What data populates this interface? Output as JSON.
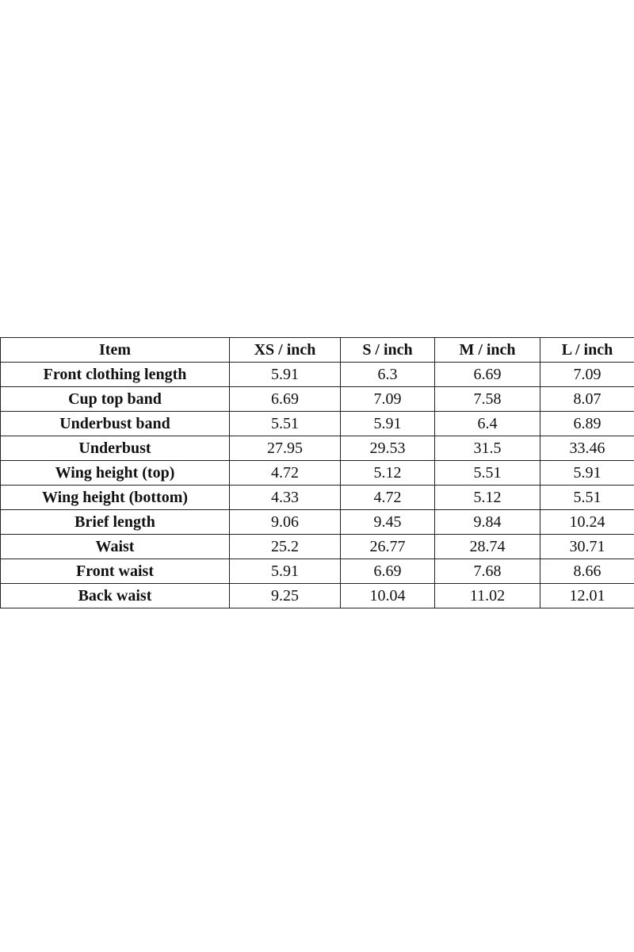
{
  "table": {
    "headers": [
      "Item",
      "XS / inch",
      "S / inch",
      "M / inch",
      "L / inch"
    ],
    "rows": [
      [
        "Front clothing length",
        "5.91",
        "6.3",
        "6.69",
        "7.09"
      ],
      [
        "Cup top band",
        "6.69",
        "7.09",
        "7.58",
        "8.07"
      ],
      [
        "Underbust band",
        "5.51",
        "5.91",
        "6.4",
        "6.89"
      ],
      [
        "Underbust",
        "27.95",
        "29.53",
        "31.5",
        "33.46"
      ],
      [
        "Wing height (top)",
        "4.72",
        "5.12",
        "5.51",
        "5.91"
      ],
      [
        "Wing height (bottom)",
        "4.33",
        "4.72",
        "5.12",
        "5.51"
      ],
      [
        "Brief length",
        "9.06",
        "9.45",
        "9.84",
        "10.24"
      ],
      [
        "Waist",
        "25.2",
        "26.77",
        "28.74",
        "30.71"
      ],
      [
        "Front waist",
        "5.91",
        "6.69",
        "7.68",
        "8.66"
      ],
      [
        "Back waist",
        "9.25",
        "10.04",
        "11.02",
        "12.01"
      ]
    ]
  }
}
